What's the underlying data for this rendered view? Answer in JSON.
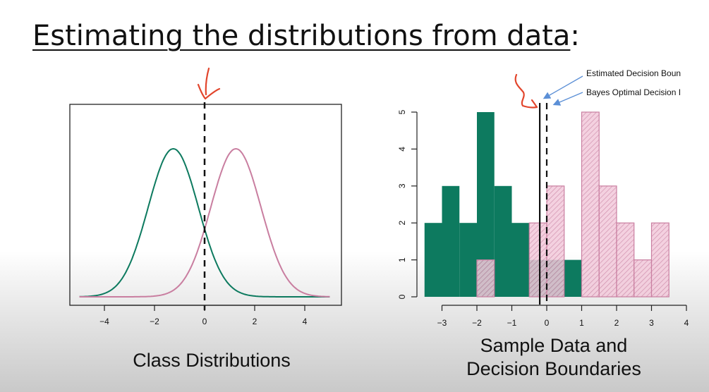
{
  "slide": {
    "title": "Estimating the distributions from data",
    "title_suffix": ":"
  },
  "colors": {
    "class_a": "#0d7a5f",
    "class_b": "#c97ea0",
    "class_b_fill": "#f2c9da",
    "annotation_pen": "#e2452c",
    "pointer_arrow": "#5b8fd6"
  },
  "chart_data": [
    {
      "type": "line",
      "caption": "Class Distributions",
      "xlim": [
        -5,
        5
      ],
      "xticks": [
        -4,
        -2,
        0,
        2,
        4
      ],
      "series": [
        {
          "mean": -1.25,
          "sd": 1.0,
          "color": "#0d7a5f"
        },
        {
          "mean": 1.25,
          "sd": 1.0,
          "color": "#c97ea0"
        }
      ],
      "vline": {
        "x": 0,
        "style": "dashed"
      }
    },
    {
      "type": "bar",
      "caption_lines": [
        "Sample Data and",
        "Decision Boundaries"
      ],
      "xlim": [
        -3.5,
        4
      ],
      "ylim": [
        0,
        5
      ],
      "xticks": [
        -3,
        -2,
        -1,
        0,
        1,
        2,
        3,
        4
      ],
      "yticks": [
        0,
        1,
        2,
        3,
        4,
        5
      ],
      "bin_width": 0.5,
      "bin_starts": [
        -3.5,
        -3,
        -2.5,
        -2,
        -1.5,
        -1,
        -0.5,
        0,
        0.5,
        1,
        1.5,
        2,
        2.5,
        3
      ],
      "series": [
        {
          "counts": [
            2,
            3,
            2,
            5,
            3,
            2,
            1,
            1,
            1,
            0,
            0,
            0,
            0,
            0
          ],
          "color": "#0d7a5f",
          "fill": "solid"
        },
        {
          "counts": [
            0,
            0,
            0,
            1,
            0,
            0,
            2,
            3,
            0,
            5,
            3,
            2,
            1,
            2
          ],
          "color": "#c97ea0",
          "fill": "hatched"
        }
      ],
      "vlines": [
        {
          "x": -0.2,
          "style": "solid",
          "label": "Estimated Decision Boun"
        },
        {
          "x": 0,
          "style": "dashed",
          "label": "Bayes Optimal Decision I"
        }
      ]
    }
  ]
}
